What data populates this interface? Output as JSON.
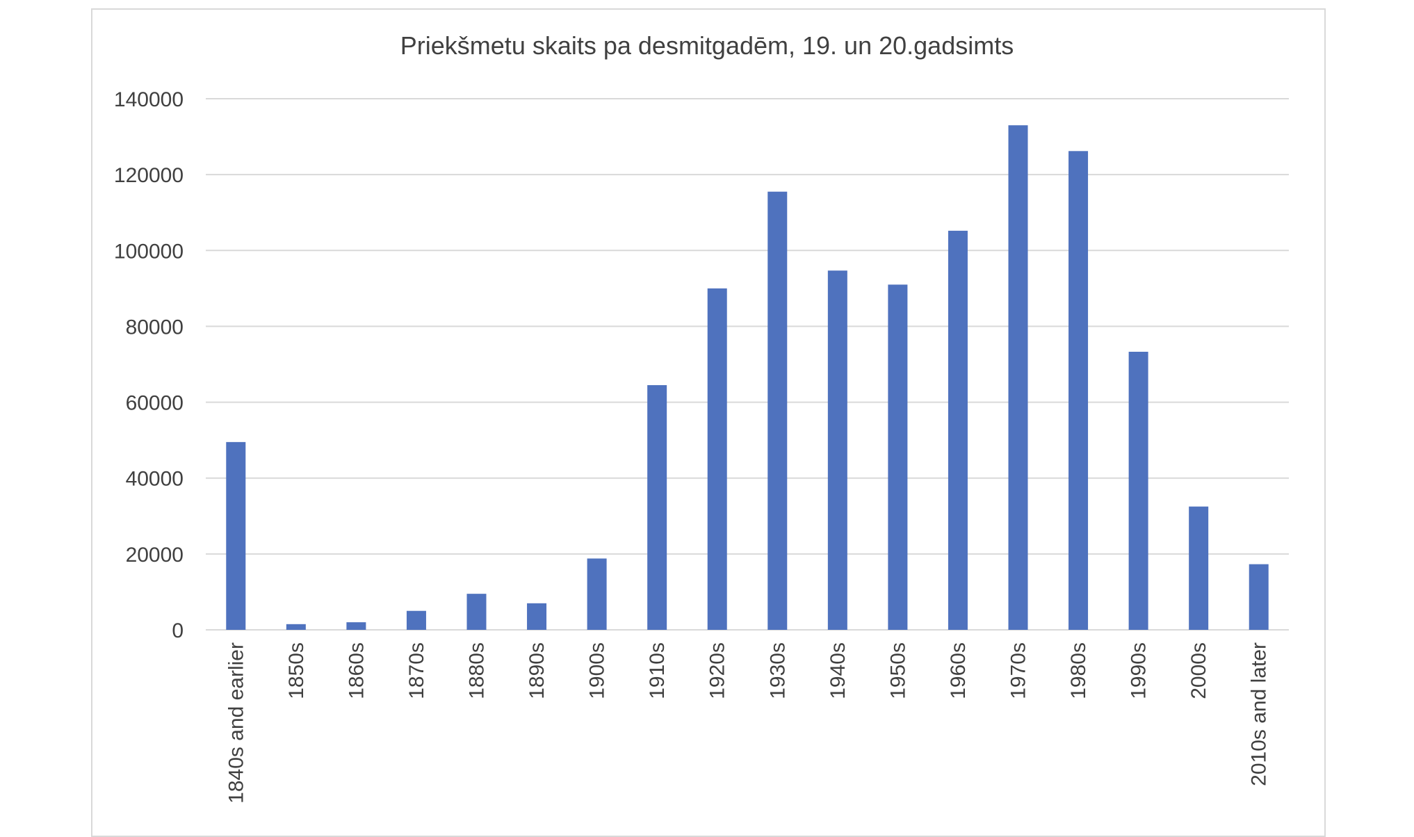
{
  "chart_data": {
    "type": "bar",
    "title": "Priekšmetu skaits pa desmitgadēm, 19. un 20.gadsimts",
    "categories": [
      "1840s and earlier",
      "1850s",
      "1860s",
      "1870s",
      "1880s",
      "1890s",
      "1900s",
      "1910s",
      "1920s",
      "1930s",
      "1940s",
      "1950s",
      "1960s",
      "1970s",
      "1980s",
      "1990s",
      "2000s",
      "2010s and later"
    ],
    "values": [
      49500,
      1500,
      2000,
      5000,
      9500,
      7000,
      18800,
      64500,
      90000,
      115500,
      94700,
      91000,
      105200,
      133000,
      126200,
      73300,
      32500,
      17300
    ],
    "ylim": [
      0,
      140000
    ],
    "yticks": [
      0,
      20000,
      40000,
      60000,
      80000,
      100000,
      120000,
      140000
    ],
    "xlabel": "",
    "ylabel": "",
    "grid": true,
    "legend": "none",
    "bar_color": "#4f72be",
    "grid_color": "#d9d9d9"
  }
}
